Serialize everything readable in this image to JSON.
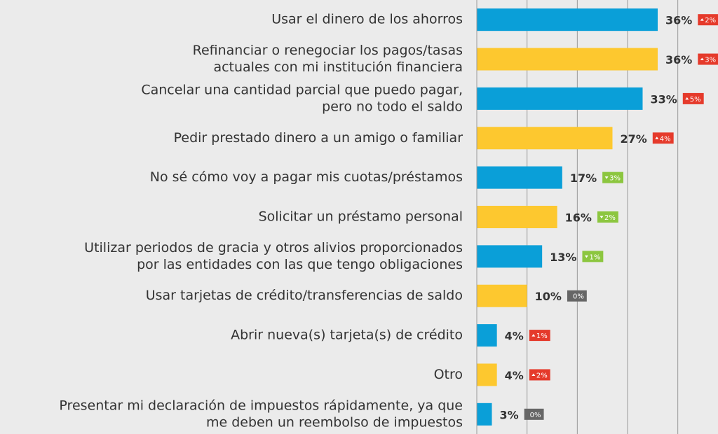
{
  "chart_data": {
    "type": "barh",
    "categories": [
      [
        "Usar el dinero de los ahorros"
      ],
      [
        "Refinanciar o renegociar los pagos/tasas",
        "actuales con mi institución financiera"
      ],
      [
        "Cancelar una cantidad parcial que puedo pagar,",
        "pero no todo el saldo"
      ],
      [
        "Pedir prestado dinero a un amigo o familiar"
      ],
      [
        "No sé cómo voy a pagar mis cuotas/préstamos"
      ],
      [
        "Solicitar un préstamo personal"
      ],
      [
        "Utilizar periodos de gracia y otros alivios proporcionados",
        "por las entidades con las que tengo obligaciones"
      ],
      [
        "Usar tarjetas de crédito/transferencias de saldo"
      ],
      [
        "Abrir nueva(s) tarjeta(s) de crédito"
      ],
      [
        "Otro"
      ],
      [
        "Presentar mi declaración de impuestos rápidamente, ya que",
        "me deben un reembolso de impuestos"
      ]
    ],
    "values": [
      36,
      36,
      33,
      27,
      17,
      16,
      13,
      10,
      4,
      4,
      3
    ],
    "value_labels": [
      "36%",
      "36%",
      "33%",
      "27%",
      "17%",
      "16%",
      "13%",
      "10%",
      "4%",
      "4%",
      "3%"
    ],
    "colors": [
      "#0a9fd8",
      "#fdc82f",
      "#0a9fd8",
      "#fdc82f",
      "#0a9fd8",
      "#fdc82f",
      "#0a9fd8",
      "#fdc82f",
      "#0a9fd8",
      "#fdc82f",
      "#0a9fd8"
    ],
    "changes": [
      2,
      3,
      5,
      4,
      -3,
      -2,
      -1,
      0,
      1,
      2,
      0
    ],
    "change_labels": [
      "2%",
      "3%",
      "5%",
      "4%",
      "3%",
      "2%",
      "1%",
      "0%",
      "1%",
      "2%",
      "0%"
    ],
    "change_colors": {
      "up": "#e53a2b",
      "down": "#8cc63f",
      "zero": "#666666"
    },
    "xlim": [
      0,
      48
    ],
    "xticks": [
      0,
      10,
      20,
      30,
      40
    ],
    "grid": true
  }
}
